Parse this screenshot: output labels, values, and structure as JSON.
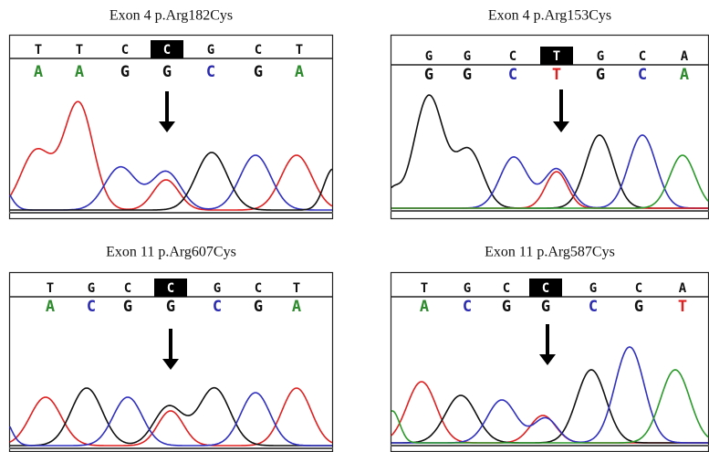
{
  "panels": [
    {
      "title": "Exon 4 p.Arg182Cys",
      "top": [
        "T",
        "T",
        "C",
        "C",
        "G",
        "C",
        "T"
      ],
      "bottom": [
        "A",
        "A",
        "G",
        "G",
        "C",
        "G",
        "A"
      ]
    },
    {
      "title": "Exon 4 p.Arg153Cys",
      "top": [
        "G",
        "G",
        "C",
        "T",
        "G",
        "C",
        "A"
      ],
      "bottom": [
        "G",
        "G",
        "C",
        "T",
        "G",
        "C",
        "A"
      ]
    },
    {
      "title": "Exon 11 p.Arg607Cys",
      "top": [
        "T",
        "G",
        "C",
        "C",
        "G",
        "C",
        "T"
      ],
      "bottom": [
        "A",
        "C",
        "G",
        "G",
        "C",
        "G",
        "A"
      ]
    },
    {
      "title": "Exon 11 p.Arg587Cys",
      "top": [
        "T",
        "G",
        "C",
        "C",
        "G",
        "C",
        "A"
      ],
      "bottom": [
        "A",
        "C",
        "G",
        "G",
        "C",
        "G",
        "T"
      ]
    }
  ]
}
